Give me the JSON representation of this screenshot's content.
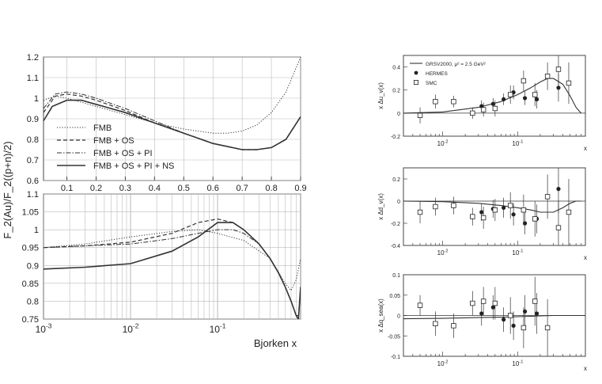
{
  "chart_data": [
    {
      "type": "line",
      "xscale": "linear",
      "xlim": [
        0.02,
        0.9
      ],
      "ylim": [
        0.6,
        1.2
      ],
      "xticks": [
        "0.1",
        "0.2",
        "0.3",
        "0.4",
        "0.5",
        "0.6",
        "0.7",
        "0.8",
        "0.9"
      ],
      "yticks": [
        "0.6",
        "0.7",
        "0.8",
        "0.9",
        "1",
        "1.1",
        "1.2"
      ],
      "legend": [
        "FMB",
        "FMB + OS",
        "FMB + OS + PI",
        "FMB + OS + PI + NS"
      ],
      "legend_position": "bottom-left",
      "series": [
        {
          "name": "FMB",
          "style": "dotted",
          "x": [
            0.02,
            0.06,
            0.1,
            0.15,
            0.2,
            0.3,
            0.4,
            0.5,
            0.6,
            0.65,
            0.7,
            0.75,
            0.8,
            0.85,
            0.9
          ],
          "y": [
            0.99,
            1.01,
            1.0,
            0.98,
            0.96,
            0.92,
            0.88,
            0.85,
            0.83,
            0.83,
            0.84,
            0.87,
            0.93,
            1.03,
            1.2
          ]
        },
        {
          "name": "FMB + OS",
          "style": "dashed",
          "x": [
            0.02,
            0.06,
            0.1,
            0.15,
            0.2,
            0.3,
            0.4,
            0.5,
            0.6,
            0.7,
            0.75,
            0.8,
            0.85,
            0.9
          ],
          "y": [
            0.93,
            1.01,
            1.02,
            1.01,
            0.99,
            0.94,
            0.88,
            0.83,
            0.78,
            0.75,
            0.75,
            0.76,
            0.8,
            0.91
          ]
        },
        {
          "name": "FMB + OS + PI",
          "style": "dash-dot",
          "x": [
            0.02,
            0.06,
            0.1,
            0.15,
            0.2,
            0.3,
            0.4,
            0.5,
            0.6,
            0.7,
            0.75,
            0.8,
            0.85,
            0.9
          ],
          "y": [
            0.95,
            1.02,
            1.03,
            1.02,
            1.0,
            0.95,
            0.89,
            0.83,
            0.78,
            0.75,
            0.75,
            0.76,
            0.8,
            0.91
          ]
        },
        {
          "name": "FMB + OS + PI + NS",
          "style": "solid",
          "x": [
            0.02,
            0.05,
            0.1,
            0.15,
            0.2,
            0.3,
            0.4,
            0.5,
            0.6,
            0.7,
            0.75,
            0.8,
            0.85,
            0.9
          ],
          "y": [
            0.89,
            0.96,
            0.99,
            0.99,
            0.97,
            0.93,
            0.88,
            0.83,
            0.78,
            0.75,
            0.75,
            0.76,
            0.8,
            0.91
          ]
        }
      ]
    },
    {
      "type": "line",
      "xscale": "log",
      "xlim": [
        0.001,
        0.9
      ],
      "ylim": [
        0.75,
        1.1
      ],
      "xlabel": "Bjorken x",
      "ylabel": "F_2(Au)/F_2((p+n)/2)",
      "xticks": [
        {
          "base": "10",
          "exp": "-3"
        },
        {
          "base": "10",
          "exp": "-2"
        },
        {
          "base": "10",
          "exp": "-1"
        }
      ],
      "yticks": [
        "0.75",
        "0.8",
        "0.85",
        "0.9",
        "0.95",
        "1",
        "1.05",
        "1.1"
      ],
      "series": [
        {
          "name": "FMB",
          "style": "dotted",
          "x": [
            0.001,
            0.003,
            0.01,
            0.03,
            0.06,
            0.1,
            0.2,
            0.4,
            0.6,
            0.7,
            0.8,
            0.9
          ],
          "y": [
            0.95,
            0.96,
            0.98,
            0.995,
            1.0,
            0.99,
            0.97,
            0.92,
            0.85,
            0.83,
            0.86,
            0.92
          ]
        },
        {
          "name": "FMB + OS",
          "style": "dashed",
          "x": [
            0.001,
            0.003,
            0.01,
            0.03,
            0.06,
            0.1,
            0.15,
            0.2,
            0.3,
            0.4,
            0.5,
            0.6,
            0.7,
            0.8,
            0.85,
            0.9
          ],
          "y": [
            0.95,
            0.955,
            0.965,
            0.99,
            1.02,
            1.03,
            1.02,
            1.0,
            0.96,
            0.92,
            0.88,
            0.84,
            0.8,
            0.76,
            0.76,
            0.84
          ]
        },
        {
          "name": "FMB + OS + PI",
          "style": "dash-dot",
          "x": [
            0.001,
            0.003,
            0.01,
            0.03,
            0.06,
            0.1,
            0.15,
            0.2,
            0.3,
            0.4,
            0.5,
            0.6,
            0.7,
            0.8,
            0.85,
            0.9
          ],
          "y": [
            0.95,
            0.955,
            0.96,
            0.975,
            0.99,
            1.0,
            1.0,
            0.99,
            0.96,
            0.92,
            0.88,
            0.84,
            0.8,
            0.76,
            0.76,
            0.84
          ]
        },
        {
          "name": "FMB + OS + PI + NS",
          "style": "solid",
          "x": [
            0.001,
            0.003,
            0.01,
            0.03,
            0.06,
            0.1,
            0.15,
            0.2,
            0.3,
            0.4,
            0.5,
            0.6,
            0.7,
            0.8,
            0.85,
            0.9
          ],
          "y": [
            0.89,
            0.895,
            0.905,
            0.94,
            0.98,
            1.02,
            1.02,
            1.0,
            0.96,
            0.92,
            0.88,
            0.84,
            0.8,
            0.76,
            0.75,
            0.84
          ]
        }
      ]
    },
    {
      "type": "scatter",
      "xscale": "log",
      "xlim": [
        0.003,
        0.8
      ],
      "ylim": [
        -0.2,
        0.5
      ],
      "ylabel": "x Δu_v(x)",
      "xlabel": "x",
      "yticks": [
        "-0.2",
        "0",
        "0.2",
        "0.4"
      ],
      "xticks": [
        {
          "base": "10",
          "exp": "-2"
        },
        {
          "base": "10",
          "exp": "-1"
        }
      ],
      "legend": [
        "GRSV2000, μ² = 2.5 GeV²",
        "HERMES",
        "SMC"
      ],
      "curve": {
        "x": [
          0.003,
          0.01,
          0.03,
          0.06,
          0.1,
          0.15,
          0.2,
          0.25,
          0.3,
          0.4,
          0.5,
          0.6,
          0.7
        ],
        "y": [
          0.0,
          0.01,
          0.05,
          0.1,
          0.16,
          0.22,
          0.27,
          0.3,
          0.3,
          0.25,
          0.15,
          0.05,
          0.0
        ]
      },
      "series": [
        {
          "name": "HERMES",
          "marker": "filled-circle",
          "x": [
            0.033,
            0.047,
            0.065,
            0.088,
            0.125,
            0.18,
            0.35
          ],
          "y": [
            0.06,
            0.08,
            0.12,
            0.18,
            0.13,
            0.12,
            0.22
          ],
          "err": [
            0.05,
            0.05,
            0.05,
            0.06,
            0.06,
            0.08,
            0.12
          ]
        },
        {
          "name": "SMC",
          "marker": "open-square",
          "x": [
            0.005,
            0.008,
            0.014,
            0.025,
            0.035,
            0.05,
            0.08,
            0.12,
            0.17,
            0.25,
            0.35,
            0.48
          ],
          "y": [
            -0.02,
            0.1,
            0.1,
            0.0,
            0.03,
            0.04,
            0.16,
            0.28,
            0.16,
            0.32,
            0.38,
            0.26
          ],
          "err": [
            0.07,
            0.06,
            0.05,
            0.05,
            0.06,
            0.07,
            0.08,
            0.09,
            0.1,
            0.12,
            0.14,
            0.18
          ]
        }
      ]
    },
    {
      "type": "scatter",
      "xscale": "log",
      "xlim": [
        0.003,
        0.8
      ],
      "ylim": [
        -0.4,
        0.3
      ],
      "ylabel": "x Δd_v(x)",
      "xlabel": "x",
      "yticks": [
        "-0.4",
        "-0.2",
        "0",
        "0.2"
      ],
      "xticks": [
        {
          "base": "10",
          "exp": "-2"
        },
        {
          "base": "10",
          "exp": "-1"
        }
      ],
      "curve": {
        "x": [
          0.003,
          0.01,
          0.03,
          0.06,
          0.1,
          0.15,
          0.2,
          0.3,
          0.4,
          0.5,
          0.6,
          0.7
        ],
        "y": [
          0.0,
          -0.005,
          -0.02,
          -0.04,
          -0.06,
          -0.08,
          -0.1,
          -0.1,
          -0.06,
          -0.02,
          0.0,
          0.0
        ]
      },
      "series": [
        {
          "name": "HERMES",
          "marker": "filled-circle",
          "x": [
            0.033,
            0.047,
            0.065,
            0.088,
            0.125,
            0.18,
            0.35
          ],
          "y": [
            -0.1,
            -0.07,
            -0.06,
            -0.12,
            -0.2,
            -0.16,
            0.11
          ],
          "err": [
            0.08,
            0.08,
            0.09,
            0.1,
            0.1,
            0.13,
            0.22
          ]
        },
        {
          "name": "SMC",
          "marker": "open-square",
          "x": [
            0.005,
            0.008,
            0.014,
            0.025,
            0.035,
            0.05,
            0.08,
            0.12,
            0.17,
            0.25,
            0.35,
            0.48
          ],
          "y": [
            -0.1,
            -0.05,
            -0.04,
            -0.14,
            -0.15,
            -0.08,
            -0.04,
            -0.08,
            -0.16,
            0.04,
            -0.24,
            -0.1
          ],
          "err": [
            0.1,
            0.08,
            0.08,
            0.08,
            0.1,
            0.1,
            0.12,
            0.14,
            0.16,
            0.2,
            0.24,
            0.3
          ]
        }
      ]
    },
    {
      "type": "scatter",
      "xscale": "log",
      "xlim": [
        0.003,
        0.8
      ],
      "ylim": [
        -0.1,
        0.1
      ],
      "ylabel": "x Δq_sea(x)",
      "xlabel": "x",
      "yticks": [
        "-0.1",
        "-0.05",
        "0",
        "0.05",
        "0.1"
      ],
      "xticks": [
        {
          "base": "10",
          "exp": "-2"
        },
        {
          "base": "10",
          "exp": "-1"
        }
      ],
      "curve": {
        "x": [
          0.003,
          0.01,
          0.03,
          0.06,
          0.1,
          0.15,
          0.2,
          0.3,
          0.5,
          0.8
        ],
        "y": [
          -0.008,
          -0.007,
          -0.005,
          -0.004,
          -0.003,
          -0.002,
          -0.001,
          0.0,
          0.0,
          0.0
        ]
      },
      "series": [
        {
          "name": "HERMES",
          "marker": "filled-circle",
          "x": [
            0.033,
            0.047,
            0.065,
            0.088,
            0.125,
            0.18
          ],
          "y": [
            0.005,
            0.02,
            -0.01,
            -0.025,
            0.01,
            0.005
          ],
          "err": [
            0.03,
            0.03,
            0.03,
            0.035,
            0.04,
            0.05
          ]
        },
        {
          "name": "SMC",
          "marker": "open-square",
          "x": [
            0.005,
            0.008,
            0.014,
            0.025,
            0.035,
            0.05,
            0.08,
            0.12,
            0.17,
            0.25
          ],
          "y": [
            0.025,
            -0.02,
            -0.025,
            0.03,
            0.035,
            0.03,
            0.0,
            -0.03,
            0.035,
            -0.03
          ],
          "err": [
            0.025,
            0.03,
            0.03,
            0.03,
            0.035,
            0.04,
            0.045,
            0.05,
            0.06,
            0.07
          ]
        }
      ]
    }
  ]
}
